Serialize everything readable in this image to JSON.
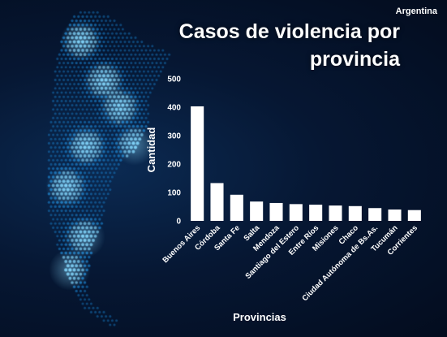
{
  "header": {
    "country": "Argentina",
    "title_line1": "Casos de violencia por",
    "title_line2": "provincia"
  },
  "colors": {
    "background": "#061733",
    "bars": "#ffffff",
    "map_dots": "#1fa3ff",
    "map_glow": "#7fd6ff"
  },
  "chart_data": {
    "type": "bar",
    "title": "Casos de violencia por provincia",
    "xlabel": "Provincias",
    "ylabel": "Cantidad",
    "ylim": [
      0,
      500
    ],
    "yticks": [
      0,
      100,
      200,
      300,
      400,
      500
    ],
    "grid": false,
    "categories": [
      "Buenos Aires",
      "Córdoba",
      "Santa Fe",
      "Salta",
      "Mendoza",
      "Santiago del Estero",
      "Entre Ríos",
      "Misiones",
      "Chaco",
      "Ciudad Autónoma de Bs.As.",
      "Tucumán",
      "Corrientes"
    ],
    "values": [
      403,
      133,
      92,
      68,
      63,
      59,
      57,
      54,
      52,
      45,
      40,
      38
    ]
  }
}
